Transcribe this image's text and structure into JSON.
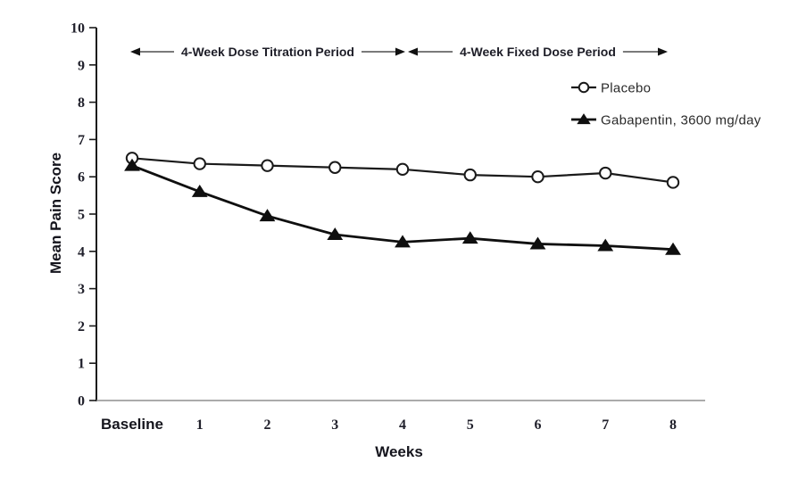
{
  "chart_data": {
    "type": "line",
    "title": "",
    "xlabel": "Weeks",
    "ylabel": "Mean Pain Score",
    "categories": [
      "Baseline",
      "1",
      "2",
      "3",
      "4",
      "5",
      "6",
      "7",
      "8"
    ],
    "series": [
      {
        "name": "Placebo",
        "marker": "open-circle",
        "line_color": "#1a1a1a",
        "values": [
          6.5,
          6.35,
          6.3,
          6.25,
          6.2,
          6.05,
          6.0,
          6.1,
          5.85
        ]
      },
      {
        "name": "Gabapentin, 3600 mg/day",
        "marker": "filled-triangle",
        "line_color": "#0f0f0f",
        "values": [
          6.3,
          5.6,
          4.95,
          4.45,
          4.25,
          4.35,
          4.2,
          4.15,
          4.05
        ]
      }
    ],
    "ylim": [
      0,
      10
    ],
    "yticks": [
      0,
      1,
      2,
      3,
      4,
      5,
      6,
      7,
      8,
      9,
      10
    ],
    "grid": false,
    "legend_position": "upper-right-inside",
    "annotations": [
      {
        "label": "4-Week Dose Titration Period",
        "x_start": "Baseline",
        "x_end": "4"
      },
      {
        "label": "4-Week Fixed Dose Period",
        "x_start": "4",
        "x_end": "8"
      }
    ],
    "colors": {
      "axis": "#1a1a1a",
      "x_axis_line": "#8f8f8f",
      "text": "#20202b",
      "marker_open_fill": "#ffffff",
      "background": "#ffffff"
    }
  }
}
